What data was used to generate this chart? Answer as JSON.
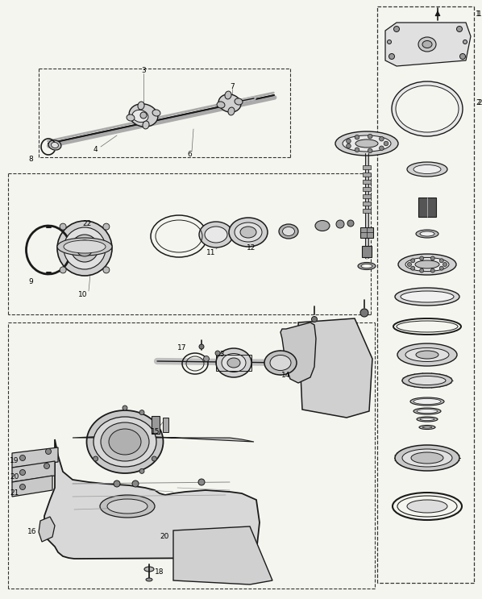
{
  "bg_color": "#f5f5f0",
  "lc": "#1a1a1a",
  "dc": "#333333",
  "gc": "#888888",
  "fig_w": 5.98,
  "fig_h": 7.43,
  "dpi": 100
}
